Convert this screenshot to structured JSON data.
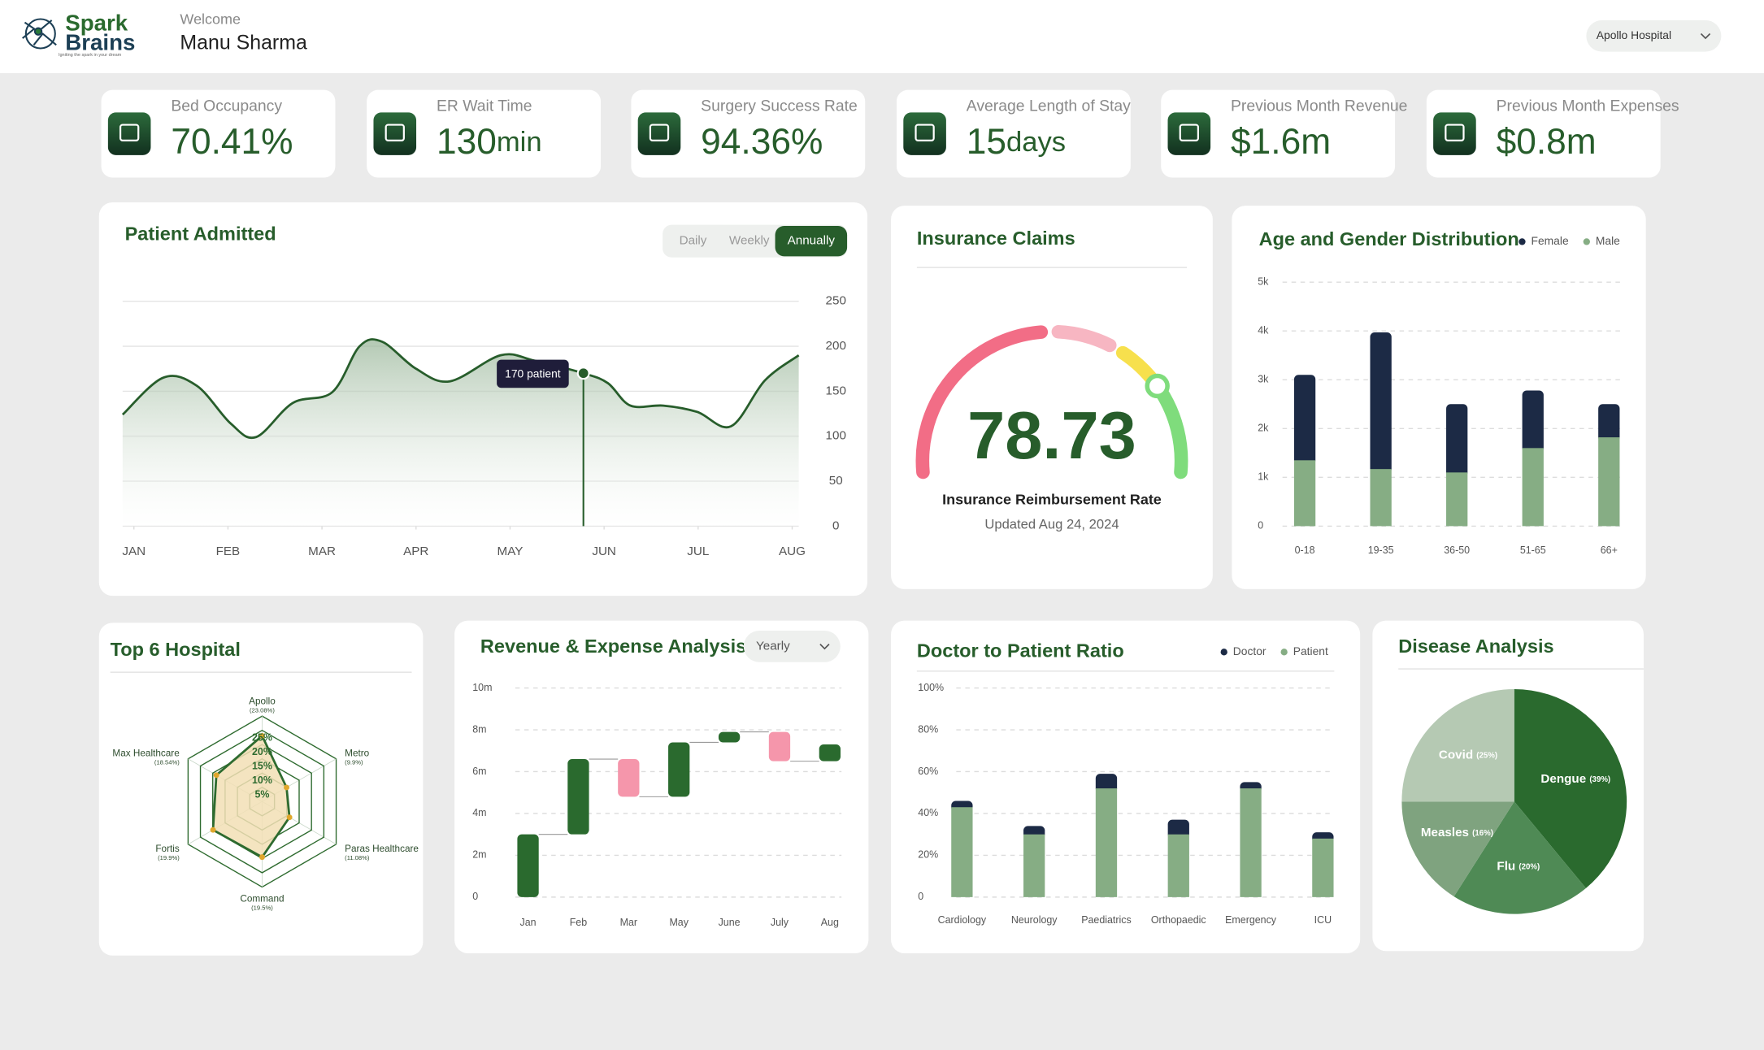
{
  "header": {
    "brand": [
      "Spark",
      "Brains"
    ],
    "tagline": "Igniting the spark in your dream",
    "welcome": "Welcome",
    "user": "Manu Sharma",
    "hospital": "Apollo Hospital"
  },
  "kpis": [
    {
      "label": "Bed Occupancy",
      "value": "70.41%"
    },
    {
      "label": "ER Wait Time",
      "value": "130",
      "unit": "min"
    },
    {
      "label": "Surgery Success Rate",
      "value": "94.36%"
    },
    {
      "label": "Average Length of Stay",
      "value": "15",
      "unit": "days"
    },
    {
      "label": "Previous Month Revenue",
      "value": "$1.6m"
    },
    {
      "label": "Previous Month Expenses",
      "value": "$0.8m"
    }
  ],
  "chart_data": [
    {
      "type": "area",
      "title": "Patient Admitted",
      "options": [
        "Daily",
        "Weekly",
        "Annually"
      ],
      "selected": 2,
      "x": [
        -0.12,
        0.31,
        0.67,
        1.03,
        1.3,
        1.69,
        2.11,
        2.4,
        2.64,
        3,
        3.36,
        3.9,
        4.26,
        4.78,
        5.04,
        5.28,
        5.63,
        5.99,
        6.35,
        6.71,
        7.07
      ],
      "values": [
        124,
        165,
        156,
        114,
        99,
        137,
        149,
        200,
        205,
        175,
        161,
        190,
        184,
        170,
        159,
        134,
        134,
        127,
        111,
        162,
        190
      ],
      "xlim": [
        -0.12,
        7.07
      ],
      "xticks": [
        {
          "value": 0,
          "label": "JAN"
        },
        {
          "value": 1,
          "label": "FEB"
        },
        {
          "value": 2,
          "label": "MAR"
        },
        {
          "value": 3,
          "label": "APR"
        },
        {
          "value": 4,
          "label": "MAY"
        },
        {
          "value": 5,
          "label": "JUN"
        },
        {
          "value": 6,
          "label": "JUL"
        },
        {
          "value": 7,
          "label": "AUG"
        }
      ],
      "ylim": [
        0,
        250
      ],
      "yticks": [
        0,
        50,
        100,
        150,
        200,
        250
      ],
      "grid": true,
      "color": "#275d2b",
      "annotation": {
        "x": 4.78,
        "value": 170,
        "label": "170 patient"
      }
    },
    {
      "type": "gauge",
      "title": "Insurance Claims",
      "value": 78.73,
      "label": "Insurance Reimbursement Rate",
      "subtitle": "Updated Aug 24, 2024",
      "ylim": [
        0,
        100
      ],
      "colors": [
        "#f26d86",
        "#f7b6c2",
        "#f7e04d",
        "#7fdc7c"
      ]
    },
    {
      "type": "stacked_bar",
      "title": "Age and Gender Distribution",
      "categories": [
        "0-18",
        "19-35",
        "36-50",
        "51-65",
        "66+"
      ],
      "series": [
        {
          "name": "Female",
          "color": "#1c2a45",
          "values": [
            1750,
            2800,
            1400,
            1180,
            680
          ]
        },
        {
          "name": "Male",
          "color": "#86ad84",
          "values": [
            1350,
            1170,
            1100,
            1600,
            1820
          ]
        }
      ],
      "ylim": [
        0,
        5000
      ],
      "yticks": [
        0,
        {
          "value": 1000,
          "label": "1k"
        },
        {
          "value": 2000,
          "label": "2k"
        },
        {
          "value": 3000,
          "label": "3k"
        },
        {
          "value": 4000,
          "label": "4k"
        },
        {
          "value": 5000,
          "label": "5k"
        }
      ],
      "grid": true,
      "legend": "top-right"
    },
    {
      "type": "radar",
      "title": "Top 6 Hospital",
      "categories": [
        "Apollo",
        "Metro",
        "Paras Healthcare",
        "Command",
        "Fortis",
        "Max Healthcare"
      ],
      "values": [
        23.08,
        9.9,
        11.08,
        19.5,
        19.9,
        18.54
      ],
      "value_labels": [
        "(23.08%)",
        "(9.9%)",
        "(11.08%)",
        "(19.5%)",
        "(19.9%)",
        "(18.54%)"
      ],
      "ylim": [
        0,
        30
      ],
      "yticks": [
        {
          "value": 5,
          "label": "5%"
        },
        {
          "value": 10,
          "label": "10%"
        },
        {
          "value": 15,
          "label": "15%"
        },
        {
          "value": 20,
          "label": "20%"
        },
        {
          "value": 25,
          "label": "25%"
        }
      ],
      "color": "#2e6b2f",
      "fill": "#f2dfb5",
      "marker_color": "#e0a72c"
    },
    {
      "type": "waterfall",
      "title": "Revenue & Expense Analysis",
      "dropdown": "Yearly",
      "categories": [
        "Jan",
        "Feb",
        "Mar",
        "May",
        "June",
        "July",
        "Aug"
      ],
      "values": [
        3,
        3.6,
        -1.8,
        2.6,
        0.5,
        -1.4,
        0.8
      ],
      "ylim": [
        0,
        10
      ],
      "yticks": [
        0,
        {
          "value": 2,
          "label": "2m"
        },
        {
          "value": 4,
          "label": "4m"
        },
        {
          "value": 6,
          "label": "6m"
        },
        {
          "value": 8,
          "label": "8m"
        },
        {
          "value": 10,
          "label": "10m"
        }
      ],
      "grid": true,
      "colors": {
        "increase": "#2a6a2e",
        "decrease": "#f596ab"
      }
    },
    {
      "type": "stacked_bar",
      "title": "Doctor to Patient Ratio",
      "categories": [
        "Cardiology",
        "Neurology",
        "Paediatrics",
        "Orthopaedic",
        "Emergency",
        "ICU"
      ],
      "series": [
        {
          "name": "Doctor",
          "color": "#1c2a45",
          "values": [
            3,
            4,
            7,
            7,
            3,
            3
          ]
        },
        {
          "name": "Patient",
          "color": "#86ad84",
          "values": [
            43,
            30,
            52,
            30,
            52,
            28
          ]
        }
      ],
      "ylim": [
        0,
        100
      ],
      "yticks": [
        0,
        {
          "value": 20,
          "label": "20%"
        },
        {
          "value": 40,
          "label": "40%"
        },
        {
          "value": 60,
          "label": "60%"
        },
        {
          "value": 80,
          "label": "80%"
        },
        {
          "value": 100,
          "label": "100%"
        }
      ],
      "grid": true,
      "legend": "top-right"
    },
    {
      "type": "pie",
      "title": "Disease Analysis",
      "categories": [
        "Dengue",
        "Flu",
        "Measles",
        "Covid"
      ],
      "values": [
        39,
        20,
        16,
        25
      ],
      "value_labels": [
        "(39%)",
        "(20%)",
        "(16%)",
        "(25%)"
      ],
      "colors": [
        "#2a6a2e",
        "#4f8a55",
        "#7fa37f",
        "#b5c9b3"
      ]
    }
  ]
}
